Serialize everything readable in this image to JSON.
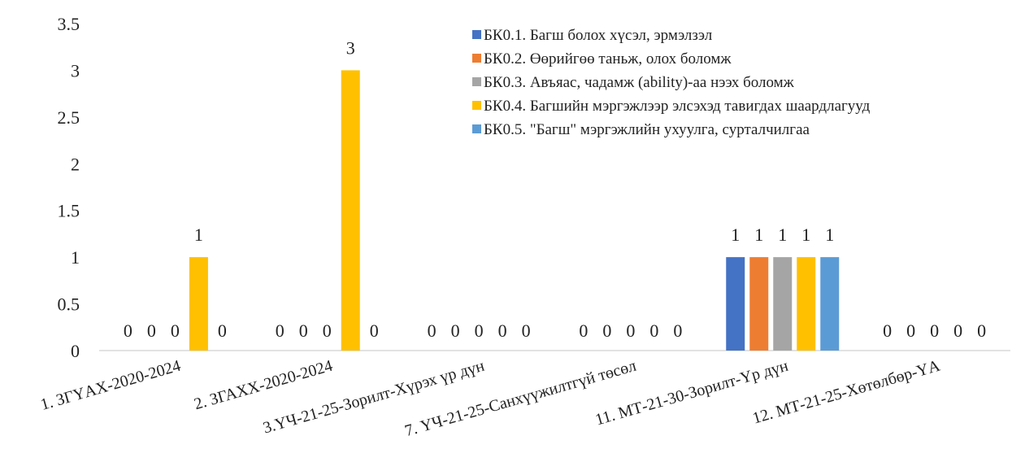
{
  "chart_data": {
    "type": "bar",
    "title": "",
    "xlabel": "",
    "ylabel": "",
    "ylim": [
      0,
      3.5
    ],
    "yticks": [
      "0",
      "0.5",
      "1",
      "1.5",
      "2",
      "2.5",
      "3",
      "3.5"
    ],
    "grid": false,
    "legend_position": "top-right",
    "categories": [
      "1. ЗГҮАХ-2020-2024",
      "2. ЗГАХХ-2020-2024",
      "3.ҮЧ-21-25-Зорилт-Хүрэх үр дүн",
      "7. ҮЧ-21-25-Санхүүжилтгүй төсөл",
      "11. МТ-21-30-Зорилт-Үр дүн",
      "12. МТ-21-25-Хөтөлбөр-ҮА"
    ],
    "series": [
      {
        "name": "БК0.1. Багш болох хүсэл, эрмэлзэл",
        "color": "#4472C4",
        "values": [
          0,
          0,
          0,
          0,
          1,
          0
        ]
      },
      {
        "name": "БК0.2. Өөрийгөө таньж, олох боломж",
        "color": "#ED7D31",
        "values": [
          0,
          0,
          0,
          0,
          1,
          0
        ]
      },
      {
        "name": "БК0.3. Авъяас, чадамж (ability)-аа нээх боломж",
        "color": "#A5A5A5",
        "values": [
          0,
          0,
          0,
          0,
          1,
          0
        ]
      },
      {
        "name": "БК0.4. Багшийн мэргэжлээр  элсэхэд тавигдах шаардлагууд",
        "color": "#FFC000",
        "values": [
          1,
          3,
          0,
          0,
          1,
          0
        ]
      },
      {
        "name": "БК0.5. \"Багш\" мэргэжлийн ухуулга, сурталчилгаа",
        "color": "#5B9BD5",
        "values": [
          0,
          0,
          0,
          0,
          1,
          0
        ]
      }
    ]
  }
}
